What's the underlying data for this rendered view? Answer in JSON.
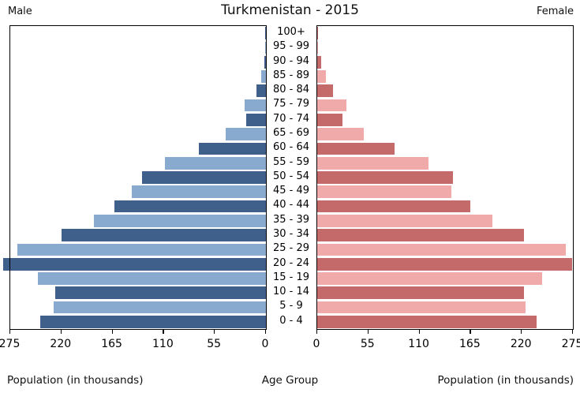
{
  "header": {
    "male_label": "Male",
    "title": "Turkmenistan - 2015",
    "female_label": "Female"
  },
  "footer": {
    "left_axis_label": "Population (in thousands)",
    "center_axis_label": "Age Group",
    "right_axis_label": "Population (in thousands)"
  },
  "chart_data": {
    "type": "bar",
    "subtype": "population-pyramid",
    "title": "Turkmenistan - 2015",
    "unit": "thousands",
    "ylabel": "Age Group",
    "xlabel": "Population (in thousands)",
    "age_groups": [
      "100+",
      "95 - 99",
      "90 - 94",
      "85 - 89",
      "80 - 84",
      "75 - 79",
      "70 - 74",
      "65 - 69",
      "60 - 64",
      "55 - 59",
      "50 - 54",
      "45 - 49",
      "40 - 44",
      "35 - 39",
      "30 - 34",
      "25 - 29",
      "20 - 24",
      "15 - 19",
      "10 - 14",
      "5 - 9",
      "0 - 4"
    ],
    "series": [
      {
        "name": "Male",
        "side": "left",
        "values": [
          1,
          1,
          2,
          5,
          10,
          23,
          21,
          43,
          72,
          109,
          133,
          144,
          163,
          185,
          220,
          267,
          283,
          245,
          227,
          228,
          243
        ]
      },
      {
        "name": "Female",
        "side": "right",
        "values": [
          1,
          1,
          4,
          9,
          17,
          31,
          27,
          50,
          83,
          120,
          146,
          144,
          165,
          188,
          222,
          267,
          274,
          242,
          222,
          224,
          236
        ]
      }
    ],
    "xlim": [
      0,
      275
    ],
    "left_axis_ticks": [
      275,
      220,
      165,
      110,
      55,
      0
    ],
    "right_axis_ticks": [
      0,
      55,
      110,
      165,
      220,
      275
    ],
    "grid": false,
    "legend": "none",
    "colors": {
      "male_dark": "#3f608a",
      "male_light": "#89aacf",
      "female_dark": "#c56a6b",
      "female_light": "#f0aaaa",
      "axis": "#000000",
      "background": "#ffffff"
    }
  }
}
